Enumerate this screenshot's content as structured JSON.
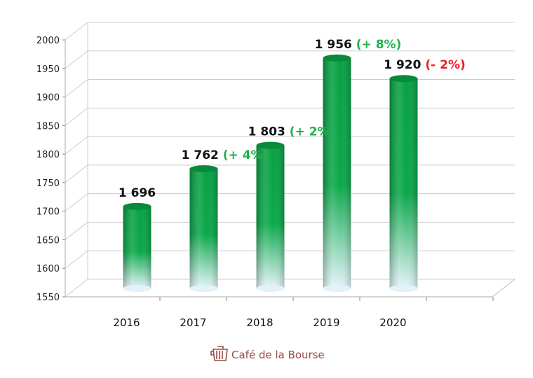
{
  "chart_data": {
    "type": "bar",
    "style": "3d-cylinder",
    "categories": [
      "2016",
      "2017",
      "2018",
      "2019",
      "2020"
    ],
    "values": [
      1696,
      1762,
      1803,
      1956,
      1920
    ],
    "value_labels": [
      "1 696",
      "1 762",
      "1 803",
      "1 956",
      "1 920"
    ],
    "change_labels": [
      "",
      "(+ 4%)",
      "(+ 2%)",
      "(+ 8%)",
      "(- 2%)"
    ],
    "change_colors": [
      "",
      "#22b14c",
      "#22b14c",
      "#22b14c",
      "#ee1c24"
    ],
    "ylim": [
      1550,
      2000
    ],
    "yticks": [
      1550,
      1600,
      1650,
      1700,
      1750,
      1800,
      1850,
      1900,
      1950,
      2000
    ],
    "grid": true,
    "bar_color": "#0aa84a",
    "title": "",
    "xlabel": "",
    "ylabel": ""
  },
  "footer": {
    "brand": "Café de la Bourse",
    "brand_color": "#9b4a44",
    "icon": "coffee-cup-icon"
  }
}
